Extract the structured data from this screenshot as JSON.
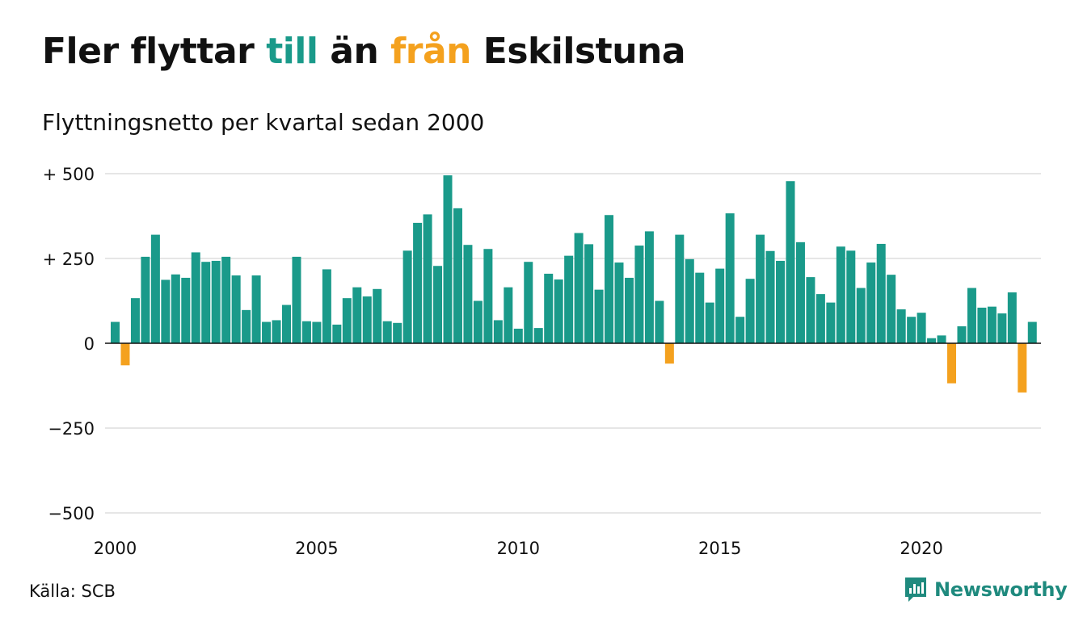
{
  "header": {
    "title_part1": "Fler flyttar ",
    "title_till": "till",
    "title_part2": " än ",
    "title_fran": "från",
    "title_part3": " Eskilstuna",
    "subtitle": "Flyttningsnetto per kvartal sedan 2000"
  },
  "footer": {
    "source": "Källa: SCB",
    "brand": "Newsworthy"
  },
  "colors": {
    "positive": "#1a9a8a",
    "negative": "#f4a11e",
    "grid": "#dddddd",
    "axis": "#111111",
    "brand": "#1f8a7e"
  },
  "chart_data": {
    "type": "bar",
    "title": "Fler flyttar till än från Eskilstuna",
    "subtitle": "Flyttningsnetto per kvartal sedan 2000",
    "xlabel": "",
    "ylabel": "",
    "ylim": [
      -500,
      500
    ],
    "yticks": [
      500,
      250,
      0,
      -250,
      -500
    ],
    "ytick_labels": [
      "+ 500",
      "+ 250",
      "0",
      "−250",
      "−500"
    ],
    "xticks": [
      "2000",
      "2005",
      "2010",
      "2015",
      "2020"
    ],
    "grid": true,
    "legend": "none",
    "start": "2000 Q1",
    "frequency": "quarterly",
    "values": [
      63,
      -65,
      133,
      255,
      320,
      187,
      203,
      193,
      268,
      240,
      243,
      255,
      200,
      98,
      200,
      63,
      68,
      113,
      255,
      65,
      63,
      218,
      55,
      133,
      165,
      138,
      160,
      65,
      60,
      273,
      355,
      380,
      228,
      495,
      398,
      290,
      125,
      278,
      68,
      165,
      43,
      240,
      45,
      205,
      188,
      258,
      325,
      292,
      158,
      378,
      238,
      193,
      288,
      330,
      125,
      -60,
      320,
      248,
      208,
      120,
      220,
      383,
      78,
      190,
      320,
      272,
      243,
      478,
      298,
      195,
      145,
      120,
      285,
      273,
      163,
      238,
      293,
      202,
      100,
      78,
      90,
      15,
      23,
      -118,
      50,
      163,
      105,
      108,
      88,
      150,
      -145,
      63
    ]
  }
}
